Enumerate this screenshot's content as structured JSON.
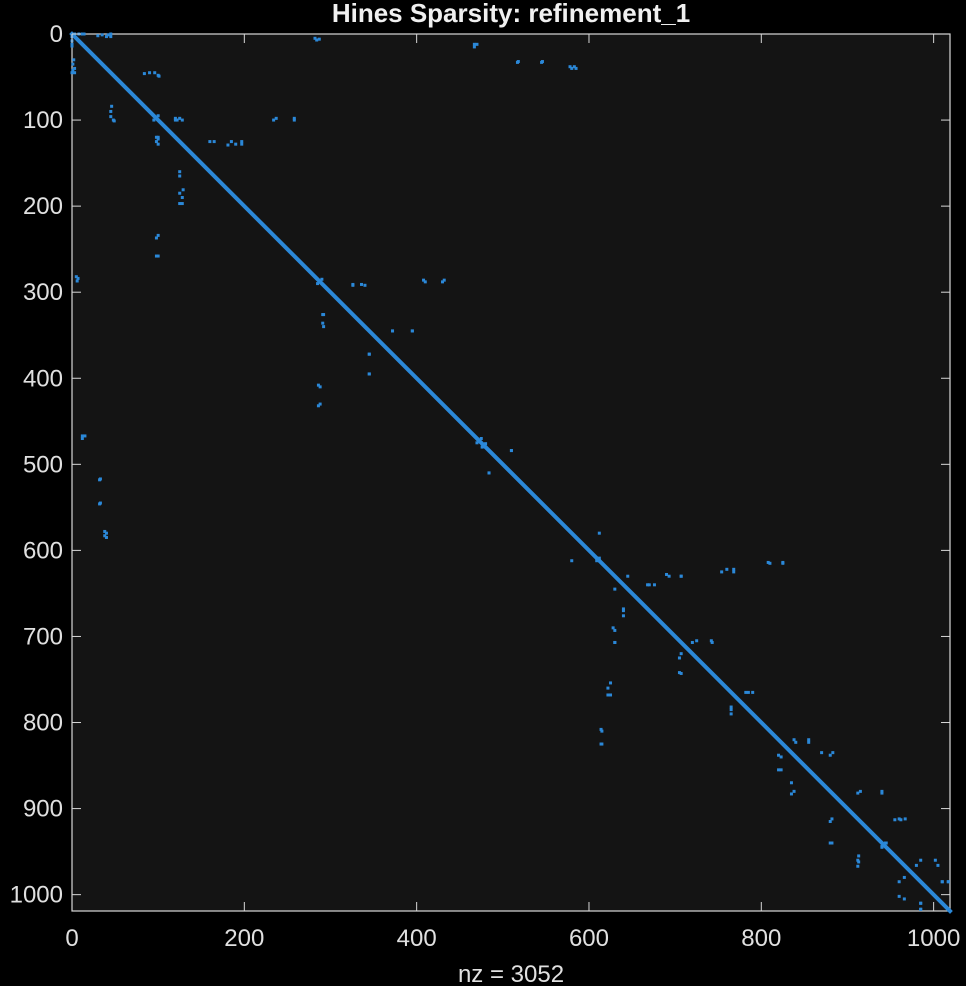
{
  "chart_data": {
    "type": "scatter",
    "title": "Hines Sparsity: refinement_1",
    "xlabel": "nz = 3052",
    "ylabel": "",
    "xlim": [
      0,
      1019
    ],
    "ylim": [
      0,
      1019
    ],
    "y_reversed": true,
    "grid": false,
    "legend": "none",
    "x_ticks": [
      0,
      200,
      400,
      600,
      800,
      1000
    ],
    "y_ticks": [
      0,
      100,
      200,
      300,
      400,
      500,
      600,
      700,
      800,
      900,
      1000
    ],
    "x_tick_labels": [
      "0",
      "200",
      "400",
      "600",
      "800",
      "1000"
    ],
    "y_tick_labels": [
      "0",
      "100",
      "200",
      "300",
      "400",
      "500",
      "600",
      "700",
      "800",
      "900",
      "1000"
    ],
    "diagonal": {
      "start": 0,
      "end": 1019
    },
    "series": [
      {
        "marker_color": "#2b88d8",
        "points": [
          [
            0,
            3
          ],
          [
            3,
            0
          ],
          [
            0,
            8
          ],
          [
            8,
            0
          ],
          [
            0,
            14
          ],
          [
            14,
            0
          ],
          [
            1,
            35
          ],
          [
            35,
            1
          ],
          [
            1,
            42
          ],
          [
            42,
            1
          ],
          [
            0,
            45
          ],
          [
            45,
            0
          ],
          [
            12,
            0
          ],
          [
            0,
            12
          ],
          [
            30,
            2
          ],
          [
            2,
            30
          ],
          [
            40,
            3
          ],
          [
            3,
            40
          ],
          [
            45,
            3
          ],
          [
            3,
            45
          ],
          [
            100,
            95
          ],
          [
            95,
            100
          ],
          [
            122,
            100
          ],
          [
            100,
            122
          ],
          [
            128,
            100
          ],
          [
            100,
            128
          ],
          [
            90,
            45
          ],
          [
            45,
            90
          ],
          [
            96,
            45
          ],
          [
            45,
            96
          ],
          [
            84,
            46
          ],
          [
            46,
            84
          ],
          [
            100,
            48
          ],
          [
            48,
            100
          ],
          [
            101,
            49
          ],
          [
            49,
            101
          ],
          [
            98,
            120
          ],
          [
            120,
            98
          ],
          [
            98,
            125
          ],
          [
            125,
            98
          ],
          [
            125,
            165
          ],
          [
            165,
            125
          ],
          [
            125,
            185
          ],
          [
            185,
            125
          ],
          [
            125,
            197
          ],
          [
            197,
            125
          ],
          [
            98,
            237
          ],
          [
            237,
            98
          ],
          [
            98,
            258
          ],
          [
            258,
            98
          ],
          [
            5,
            282
          ],
          [
            282,
            5
          ],
          [
            6,
            287
          ],
          [
            287,
            6
          ],
          [
            120,
            100
          ],
          [
            100,
            120
          ],
          [
            160,
            125
          ],
          [
            125,
            160
          ],
          [
            181,
            129
          ],
          [
            129,
            181
          ],
          [
            190,
            128
          ],
          [
            128,
            190
          ],
          [
            197,
            128
          ],
          [
            128,
            197
          ],
          [
            234,
            100
          ],
          [
            100,
            234
          ],
          [
            258,
            100
          ],
          [
            100,
            258
          ],
          [
            284,
            7
          ],
          [
            7,
            284
          ],
          [
            467,
            15
          ],
          [
            15,
            467
          ],
          [
            517,
            33
          ],
          [
            33,
            517
          ],
          [
            545,
            33
          ],
          [
            33,
            545
          ],
          [
            580,
            40
          ],
          [
            40,
            580
          ],
          [
            585,
            40
          ],
          [
            40,
            585
          ],
          [
            290,
            285
          ],
          [
            285,
            290
          ],
          [
            292,
            326
          ],
          [
            326,
            292
          ],
          [
            292,
            340
          ],
          [
            340,
            292
          ],
          [
            286,
            408
          ],
          [
            408,
            286
          ],
          [
            286,
            432
          ],
          [
            432,
            286
          ],
          [
            326,
            291
          ],
          [
            291,
            326
          ],
          [
            336,
            291
          ],
          [
            291,
            336
          ],
          [
            345,
            372
          ],
          [
            372,
            345
          ],
          [
            345,
            395
          ],
          [
            395,
            345
          ],
          [
            372,
            345
          ],
          [
            345,
            372
          ],
          [
            395,
            345
          ],
          [
            345,
            395
          ],
          [
            410,
            288
          ],
          [
            288,
            410
          ],
          [
            430,
            288
          ],
          [
            288,
            430
          ],
          [
            467,
            12
          ],
          [
            12,
            467
          ],
          [
            470,
            12
          ],
          [
            12,
            470
          ],
          [
            518,
            32
          ],
          [
            32,
            518
          ],
          [
            546,
            32
          ],
          [
            32,
            546
          ],
          [
            578,
            38
          ],
          [
            38,
            578
          ],
          [
            583,
            38
          ],
          [
            38,
            583
          ],
          [
            470,
            475
          ],
          [
            475,
            470
          ],
          [
            476,
            480
          ],
          [
            480,
            476
          ],
          [
            484,
            510
          ],
          [
            510,
            484
          ],
          [
            510,
            484
          ],
          [
            484,
            510
          ],
          [
            609,
            612
          ],
          [
            612,
            609
          ],
          [
            612,
            580
          ],
          [
            580,
            612
          ],
          [
            615,
            810
          ],
          [
            810,
            615
          ],
          [
            615,
            825
          ],
          [
            825,
            615
          ],
          [
            625,
            754
          ],
          [
            754,
            625
          ],
          [
            625,
            768
          ],
          [
            768,
            625
          ],
          [
            630,
            693
          ],
          [
            693,
            630
          ],
          [
            630,
            707
          ],
          [
            707,
            630
          ],
          [
            640,
            668
          ],
          [
            668,
            640
          ],
          [
            640,
            676
          ],
          [
            676,
            640
          ],
          [
            645,
            630
          ],
          [
            630,
            645
          ],
          [
            670,
            640
          ],
          [
            640,
            670
          ],
          [
            690,
            628
          ],
          [
            628,
            690
          ],
          [
            707,
            630
          ],
          [
            630,
            707
          ],
          [
            705,
            725
          ],
          [
            725,
            705
          ],
          [
            705,
            742
          ],
          [
            742,
            705
          ],
          [
            720,
            707
          ],
          [
            707,
            720
          ],
          [
            743,
            707
          ],
          [
            707,
            743
          ],
          [
            760,
            622
          ],
          [
            622,
            760
          ],
          [
            768,
            622
          ],
          [
            622,
            768
          ],
          [
            808,
            614
          ],
          [
            614,
            808
          ],
          [
            825,
            614
          ],
          [
            614,
            825
          ],
          [
            765,
            782
          ],
          [
            782,
            765
          ],
          [
            765,
            790
          ],
          [
            790,
            765
          ],
          [
            785,
            765
          ],
          [
            765,
            785
          ],
          [
            820,
            838
          ],
          [
            838,
            820
          ],
          [
            820,
            855
          ],
          [
            855,
            820
          ],
          [
            835,
            870
          ],
          [
            870,
            835
          ],
          [
            835,
            883
          ],
          [
            883,
            835
          ],
          [
            840,
            823
          ],
          [
            823,
            840
          ],
          [
            855,
            823
          ],
          [
            823,
            855
          ],
          [
            880,
            838
          ],
          [
            838,
            880
          ],
          [
            880,
            915
          ],
          [
            915,
            880
          ],
          [
            880,
            940
          ],
          [
            940,
            880
          ],
          [
            912,
            882
          ],
          [
            882,
            912
          ],
          [
            940,
            882
          ],
          [
            882,
            940
          ],
          [
            912,
            960
          ],
          [
            960,
            912
          ],
          [
            912,
            967
          ],
          [
            967,
            912
          ],
          [
            955,
            913
          ],
          [
            913,
            955
          ],
          [
            962,
            913
          ],
          [
            913,
            962
          ],
          [
            940,
            944
          ],
          [
            944,
            940
          ],
          [
            945,
            940
          ],
          [
            940,
            945
          ],
          [
            960,
            985
          ],
          [
            985,
            960
          ],
          [
            960,
            1002
          ],
          [
            1002,
            960
          ],
          [
            980,
            966
          ],
          [
            966,
            980
          ],
          [
            1005,
            966
          ],
          [
            966,
            1005
          ],
          [
            985,
            1010
          ],
          [
            1010,
            985
          ],
          [
            985,
            1017
          ],
          [
            1017,
            985
          ],
          [
            1010,
            985
          ],
          [
            985,
            1010
          ],
          [
            1017,
            985
          ],
          [
            985,
            1017
          ]
        ]
      }
    ]
  }
}
